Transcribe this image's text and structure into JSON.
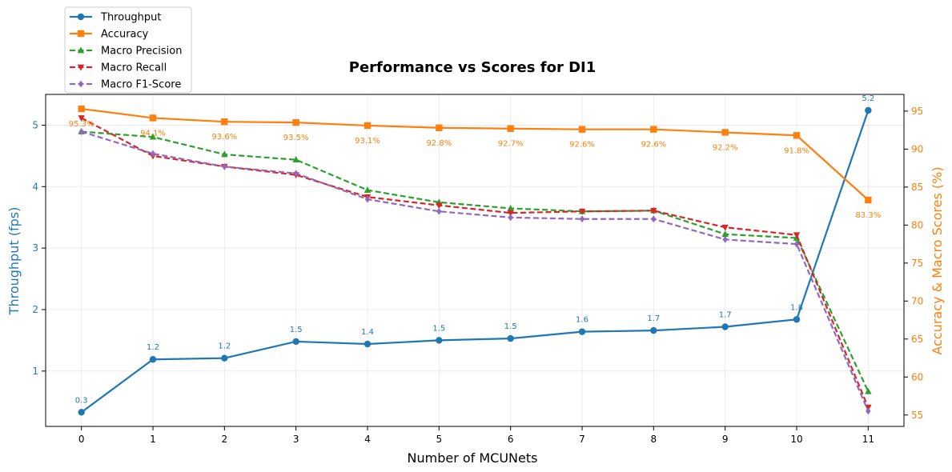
{
  "chart_data": {
    "type": "line",
    "title": "Performance vs Scores for DI1",
    "xlabel": "Number of MCUNets",
    "ylabel_left": "Throughput (fps)",
    "ylabel_right": "Accuracy & Macro Scores (%)",
    "x": [
      0,
      1,
      2,
      3,
      4,
      5,
      6,
      7,
      8,
      9,
      10,
      11
    ],
    "xticks": [
      "0",
      "1",
      "2",
      "3",
      "4",
      "5",
      "6",
      "7",
      "8",
      "9",
      "10",
      "11"
    ],
    "ylim_left": [
      0.1,
      5.5
    ],
    "yticks_left": [
      1,
      2,
      3,
      4,
      5
    ],
    "ylim_right": [
      53.5,
      97.2
    ],
    "yticks_right": [
      55,
      60,
      65,
      70,
      75,
      80,
      85,
      90,
      95
    ],
    "grid": true,
    "legend_position": "upper-left, outside above plot",
    "series": [
      {
        "name": "Throughput",
        "axis": "left",
        "color": "#1f77b4",
        "dash": "solid",
        "marker": "circle",
        "values": [
          0.33,
          1.19,
          1.21,
          1.48,
          1.44,
          1.5,
          1.53,
          1.64,
          1.66,
          1.72,
          1.84,
          5.24
        ],
        "labels": [
          "0.3",
          "1.2",
          "1.2",
          "1.5",
          "1.4",
          "1.5",
          "1.5",
          "1.6",
          "1.7",
          "1.7",
          "1.8",
          "5.2"
        ]
      },
      {
        "name": "Accuracy",
        "axis": "right",
        "color": "#ff7f0e",
        "dash": "solid",
        "marker": "square",
        "values": [
          95.3,
          94.1,
          93.6,
          93.5,
          93.1,
          92.8,
          92.7,
          92.6,
          92.6,
          92.2,
          91.8,
          83.3
        ],
        "labels": [
          "95.3%",
          "94.1%",
          "93.6%",
          "93.5%",
          "93.1%",
          "92.8%",
          "92.7%",
          "92.6%",
          "92.6%",
          "92.2%",
          "91.8%",
          "83.3%"
        ]
      },
      {
        "name": "Macro Precision",
        "axis": "right",
        "color": "#2ca02c",
        "dash": "dashed",
        "marker": "triangle-up",
        "values": [
          92.3,
          91.6,
          89.3,
          88.6,
          84.6,
          83.0,
          82.2,
          81.8,
          81.9,
          78.8,
          78.3,
          58.1
        ]
      },
      {
        "name": "Macro Recall",
        "axis": "right",
        "color": "#d62728",
        "dash": "dashed",
        "marker": "triangle-down",
        "values": [
          94.1,
          89.1,
          87.7,
          86.6,
          83.7,
          82.6,
          81.6,
          81.8,
          81.9,
          79.7,
          78.7,
          56.0
        ]
      },
      {
        "name": "Macro F1-Score",
        "axis": "right",
        "color": "#9467bd",
        "dash": "dashed",
        "marker": "diamond",
        "values": [
          92.3,
          89.4,
          87.7,
          86.8,
          83.4,
          81.8,
          81.0,
          80.8,
          80.8,
          78.1,
          77.5,
          55.5
        ]
      }
    ]
  }
}
